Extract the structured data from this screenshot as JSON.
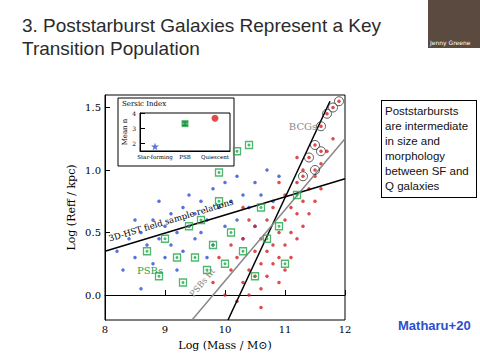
{
  "slide": {
    "title": [
      "3. Poststarburst Galaxies Represent a Key",
      "Transition Population"
    ],
    "note": "Poststarbursts are intermediate in size and morphology between SF and Q galaxies",
    "citation": "Matharu+20",
    "speaker": "Jenny Greene"
  },
  "chart_data": [
    {
      "type": "scatter",
      "xlabel": "Log (Mass / M⊙)",
      "ylabel": "Log (Reff / kpc)",
      "xlim": [
        8,
        12
      ],
      "xticks": [
        8,
        9,
        10,
        11,
        12
      ],
      "ylim": [
        -0.2,
        1.6
      ],
      "yticks": [
        {
          "value": 0,
          "label": "0.0"
        },
        {
          "value": 0.5,
          "label": "0.5"
        },
        {
          "value": 1,
          "label": "1.0"
        },
        {
          "value": 1.5,
          "label": "1.5"
        }
      ],
      "grid": false,
      "series": [
        {
          "type": "scatter",
          "color": "#2f4fd8",
          "marker": "circle",
          "values": [
            [
              8.2,
              0.35
            ],
            [
              8.3,
              0.2
            ],
            [
              8.4,
              0.45
            ],
            [
              8.5,
              0.3
            ],
            [
              8.6,
              0.5
            ],
            [
              8.6,
              0.05
            ],
            [
              8.7,
              0.4
            ],
            [
              8.8,
              0.6
            ],
            [
              8.8,
              0.25
            ],
            [
              8.9,
              0.45
            ],
            [
              9.0,
              0.55
            ],
            [
              9.0,
              0.3
            ],
            [
              9.1,
              0.65
            ],
            [
              9.1,
              0.4
            ],
            [
              9.2,
              0.5
            ],
            [
              9.3,
              0.7
            ],
            [
              9.3,
              0.35
            ],
            [
              9.4,
              0.55
            ],
            [
              9.4,
              0.8
            ],
            [
              9.5,
              0.45
            ],
            [
              9.5,
              0.65
            ],
            [
              9.6,
              0.75
            ],
            [
              9.6,
              0.5
            ],
            [
              9.7,
              0.6
            ],
            [
              9.8,
              0.85
            ],
            [
              9.8,
              0.4
            ],
            [
              9.9,
              0.7
            ],
            [
              10.0,
              0.55
            ],
            [
              10.0,
              0.9
            ],
            [
              10.1,
              0.75
            ],
            [
              10.2,
              0.6
            ],
            [
              10.2,
              0.95
            ],
            [
              10.3,
              0.8
            ],
            [
              10.4,
              0.7
            ],
            [
              10.5,
              0.9
            ],
            [
              10.5,
              0.55
            ],
            [
              10.6,
              0.8
            ],
            [
              10.7,
              1.0
            ],
            [
              10.8,
              0.75
            ],
            [
              10.9,
              0.95
            ],
            [
              9.2,
              0.2
            ],
            [
              8.9,
              0.75
            ],
            [
              9.7,
              0.3
            ],
            [
              10.3,
              0.45
            ],
            [
              8.5,
              0.6
            ]
          ]
        },
        {
          "type": "scatter",
          "color": "#d81e1e",
          "marker": "circle",
          "values": [
            [
              9.8,
              0.1
            ],
            [
              10.0,
              0.0
            ],
            [
              10.1,
              0.2
            ],
            [
              10.2,
              -0.05
            ],
            [
              10.2,
              0.3
            ],
            [
              10.3,
              0.1
            ],
            [
              10.3,
              0.45
            ],
            [
              10.4,
              0.2
            ],
            [
              10.4,
              0.0
            ],
            [
              10.5,
              0.35
            ],
            [
              10.5,
              0.15
            ],
            [
              10.5,
              0.55
            ],
            [
              10.6,
              0.25
            ],
            [
              10.6,
              0.45
            ],
            [
              10.6,
              0.05
            ],
            [
              10.7,
              0.35
            ],
            [
              10.7,
              0.6
            ],
            [
              10.7,
              0.15
            ],
            [
              10.8,
              0.4
            ],
            [
              10.8,
              0.25
            ],
            [
              10.8,
              0.7
            ],
            [
              10.9,
              0.5
            ],
            [
              10.9,
              0.3
            ],
            [
              10.9,
              0.1
            ],
            [
              11.0,
              0.6
            ],
            [
              11.0,
              0.4
            ],
            [
              11.0,
              0.8
            ],
            [
              11.1,
              0.5
            ],
            [
              11.1,
              0.7
            ],
            [
              11.1,
              0.3
            ],
            [
              11.2,
              0.65
            ],
            [
              11.2,
              0.9
            ],
            [
              11.2,
              0.45
            ],
            [
              11.3,
              0.75
            ],
            [
              11.3,
              0.55
            ],
            [
              11.3,
              1.0
            ],
            [
              11.4,
              0.85
            ],
            [
              11.4,
              0.65
            ],
            [
              11.5,
              0.95
            ],
            [
              11.5,
              0.75
            ],
            [
              11.6,
              1.05
            ],
            [
              11.6,
              0.85
            ],
            [
              11.7,
              1.15
            ],
            [
              11.8,
              1.25
            ],
            [
              10.1,
              0.4
            ],
            [
              10.4,
              0.6
            ],
            [
              10.6,
              -0.1
            ],
            [
              11.0,
              0.2
            ],
            [
              10.9,
              0.9
            ],
            [
              11.2,
              1.1
            ],
            [
              9.9,
              0.3
            ],
            [
              10.3,
              0.7
            ]
          ]
        },
        {
          "type": "scatter",
          "color": "#d81e1e",
          "marker": "circled",
          "values": [
            [
              11.3,
              0.95
            ],
            [
              11.4,
              1.1
            ],
            [
              11.5,
              1.2
            ],
            [
              11.6,
              1.35
            ],
            [
              11.7,
              1.45
            ],
            [
              11.8,
              1.5
            ],
            [
              11.9,
              1.55
            ],
            [
              11.6,
              1.15
            ],
            [
              11.5,
              1.0
            ]
          ]
        },
        {
          "type": "scatter",
          "color": "#22a84a",
          "marker": "open_square",
          "values": [
            [
              8.7,
              0.35
            ],
            [
              8.9,
              0.15
            ],
            [
              9.0,
              0.45
            ],
            [
              9.2,
              0.3
            ],
            [
              9.3,
              0.1
            ],
            [
              9.4,
              0.55
            ],
            [
              9.5,
              0.3
            ],
            [
              9.9,
              0.98
            ],
            [
              9.6,
              0.6
            ],
            [
              9.7,
              0.2
            ],
            [
              9.8,
              0.4
            ],
            [
              9.9,
              0.75
            ],
            [
              10.0,
              0.25
            ],
            [
              10.1,
              0.5
            ],
            [
              10.2,
              1.15
            ],
            [
              10.3,
              0.35
            ],
            [
              10.5,
              0.15
            ],
            [
              10.6,
              0.7
            ],
            [
              10.7,
              0.45
            ],
            [
              10.9,
              0.55
            ],
            [
              11.0,
              0.25
            ],
            [
              11.2,
              0.8
            ],
            [
              10.4,
              1.2
            ]
          ]
        },
        {
          "type": "line",
          "color": "#000000",
          "line_style": "solid",
          "x": [
            8.0,
            12.0
          ],
          "y": [
            0.35,
            0.93
          ],
          "label": "3D-HST field sample relations",
          "label_at": [
            9.1,
            0.6
          ]
        },
        {
          "type": "line",
          "color": "#000000",
          "line_style": "solid",
          "x": [
            10.05,
            11.75
          ],
          "y": [
            -0.2,
            1.55
          ]
        },
        {
          "type": "line",
          "color": "#888888",
          "line_style": "solid",
          "x": [
            9.45,
            12.0
          ],
          "y": [
            -0.2,
            1.25
          ],
          "label": "PSBs fit",
          "label_at": [
            9.62,
            0.1
          ]
        }
      ],
      "annotations": [
        {
          "text": "BCGs",
          "x": 11.3,
          "y": 1.35,
          "color": "#888888"
        },
        {
          "text": "PSBs",
          "x": 8.75,
          "y": 0.2,
          "color": "#22a84a"
        }
      ]
    },
    {
      "type": "scatter",
      "title": "Sersic Index",
      "ylabel": "Mean n",
      "categories": [
        "Star-forming",
        "PSB",
        "Quiescent"
      ],
      "values": [
        1.8,
        3.3,
        3.65
      ],
      "errors": [
        null,
        0.12,
        null
      ],
      "colors": [
        "#2f4fd8",
        "#22a84a",
        "#d81e1e"
      ],
      "markers": [
        "star",
        "square",
        "circle"
      ],
      "ylim": [
        1.5,
        4.0
      ],
      "yticks": [
        2,
        3,
        4
      ]
    }
  ]
}
